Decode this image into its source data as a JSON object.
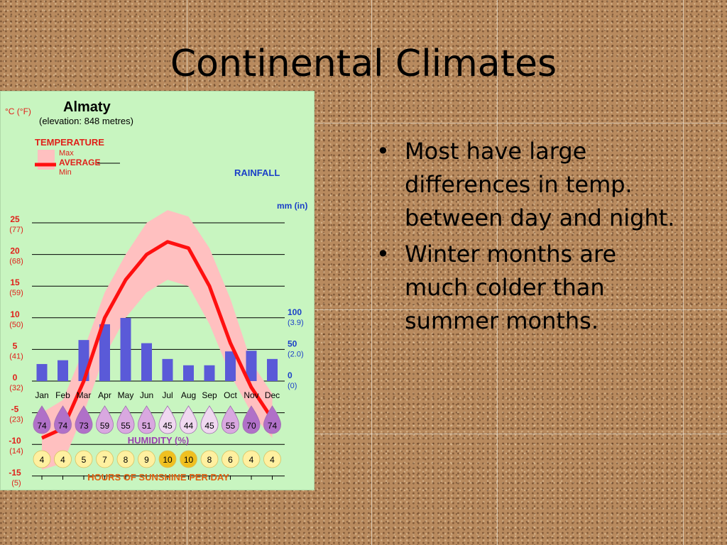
{
  "slide": {
    "title": "Continental Climates",
    "bullets": [
      "Most have large differences in temp. between day and night.",
      "Winter months are much colder than summer months."
    ],
    "bullet_marker": "•"
  },
  "chart_data": {
    "type": "climate-graph",
    "title": "Almaty",
    "subtitle": "(elevation: 848 metres)",
    "temperature_axis": {
      "label": "°C (°F)",
      "ticks": [
        {
          "c": "25",
          "f": "(77)"
        },
        {
          "c": "20",
          "f": "(68)"
        },
        {
          "c": "15",
          "f": "(59)"
        },
        {
          "c": "10",
          "f": "(50)"
        },
        {
          "c": "5",
          "f": "(41)"
        },
        {
          "c": "0",
          "f": "(32)"
        },
        {
          "c": "-5",
          "f": "(23)"
        },
        {
          "c": "-10",
          "f": "(14)"
        },
        {
          "c": "-15",
          "f": "(5)"
        }
      ],
      "ylim": [
        -15,
        25
      ]
    },
    "rainfall_axis": {
      "label": "mm (in)",
      "ticks": [
        {
          "mm": "100",
          "in": "(3.9)",
          "value": 100
        },
        {
          "mm": "50",
          "in": "(2.0)",
          "value": 50
        },
        {
          "mm": "0",
          "in": "(0)",
          "value": 0
        }
      ]
    },
    "legend": {
      "temperature_label": "TEMPERATURE",
      "max_label": "Max",
      "average_label": "AVERAGE",
      "min_label": "Min",
      "rainfall_label": "RAINFALL"
    },
    "months": [
      "Jan",
      "Feb",
      "Mar",
      "Apr",
      "May",
      "Jun",
      "Jul",
      "Aug",
      "Sep",
      "Oct",
      "Nov",
      "Dec"
    ],
    "temp_average": [
      -9,
      -7.5,
      0,
      10,
      16,
      20,
      22,
      21,
      15,
      6,
      -1,
      -6
    ],
    "temp_max": [
      -5,
      -3,
      5,
      14,
      20,
      25,
      27,
      26,
      21,
      13,
      3,
      -2
    ],
    "temp_min": [
      -14,
      -13,
      -5,
      4,
      10,
      14,
      16,
      15,
      9,
      1,
      -5,
      -9
    ],
    "rainfall_mm": [
      27,
      33,
      65,
      90,
      100,
      60,
      35,
      25,
      25,
      47,
      48,
      35
    ],
    "humidity": {
      "label": "HUMIDITY (%)",
      "values": [
        "74",
        "74",
        "73",
        "59",
        "55",
        "51",
        "45",
        "44",
        "45",
        "55",
        "70",
        "74"
      ]
    },
    "sunshine": {
      "label": "HOURS OF SUNSHINE PER DAY",
      "values": [
        "4",
        "4",
        "5",
        "7",
        "8",
        "9",
        "10",
        "10",
        "8",
        "6",
        "4",
        "4"
      ]
    },
    "colors": {
      "panel_background": "#c8f5c0",
      "average_line": "#ff1010",
      "range_band": "#ffc0c0",
      "rain_bars": "#5a5ad8",
      "temp_text": "#e0201a",
      "rain_text": "#1a3fc8",
      "humidity_drop_high": "#b070c8",
      "humidity_drop_mid": "#d9a8e0",
      "humidity_drop_low": "#f0d8f0",
      "sun_circle_high": "#f0c020",
      "sun_circle_low": "#fff0a0",
      "footer_text": "#e06010",
      "humidity_text": "#9a40b0"
    }
  }
}
